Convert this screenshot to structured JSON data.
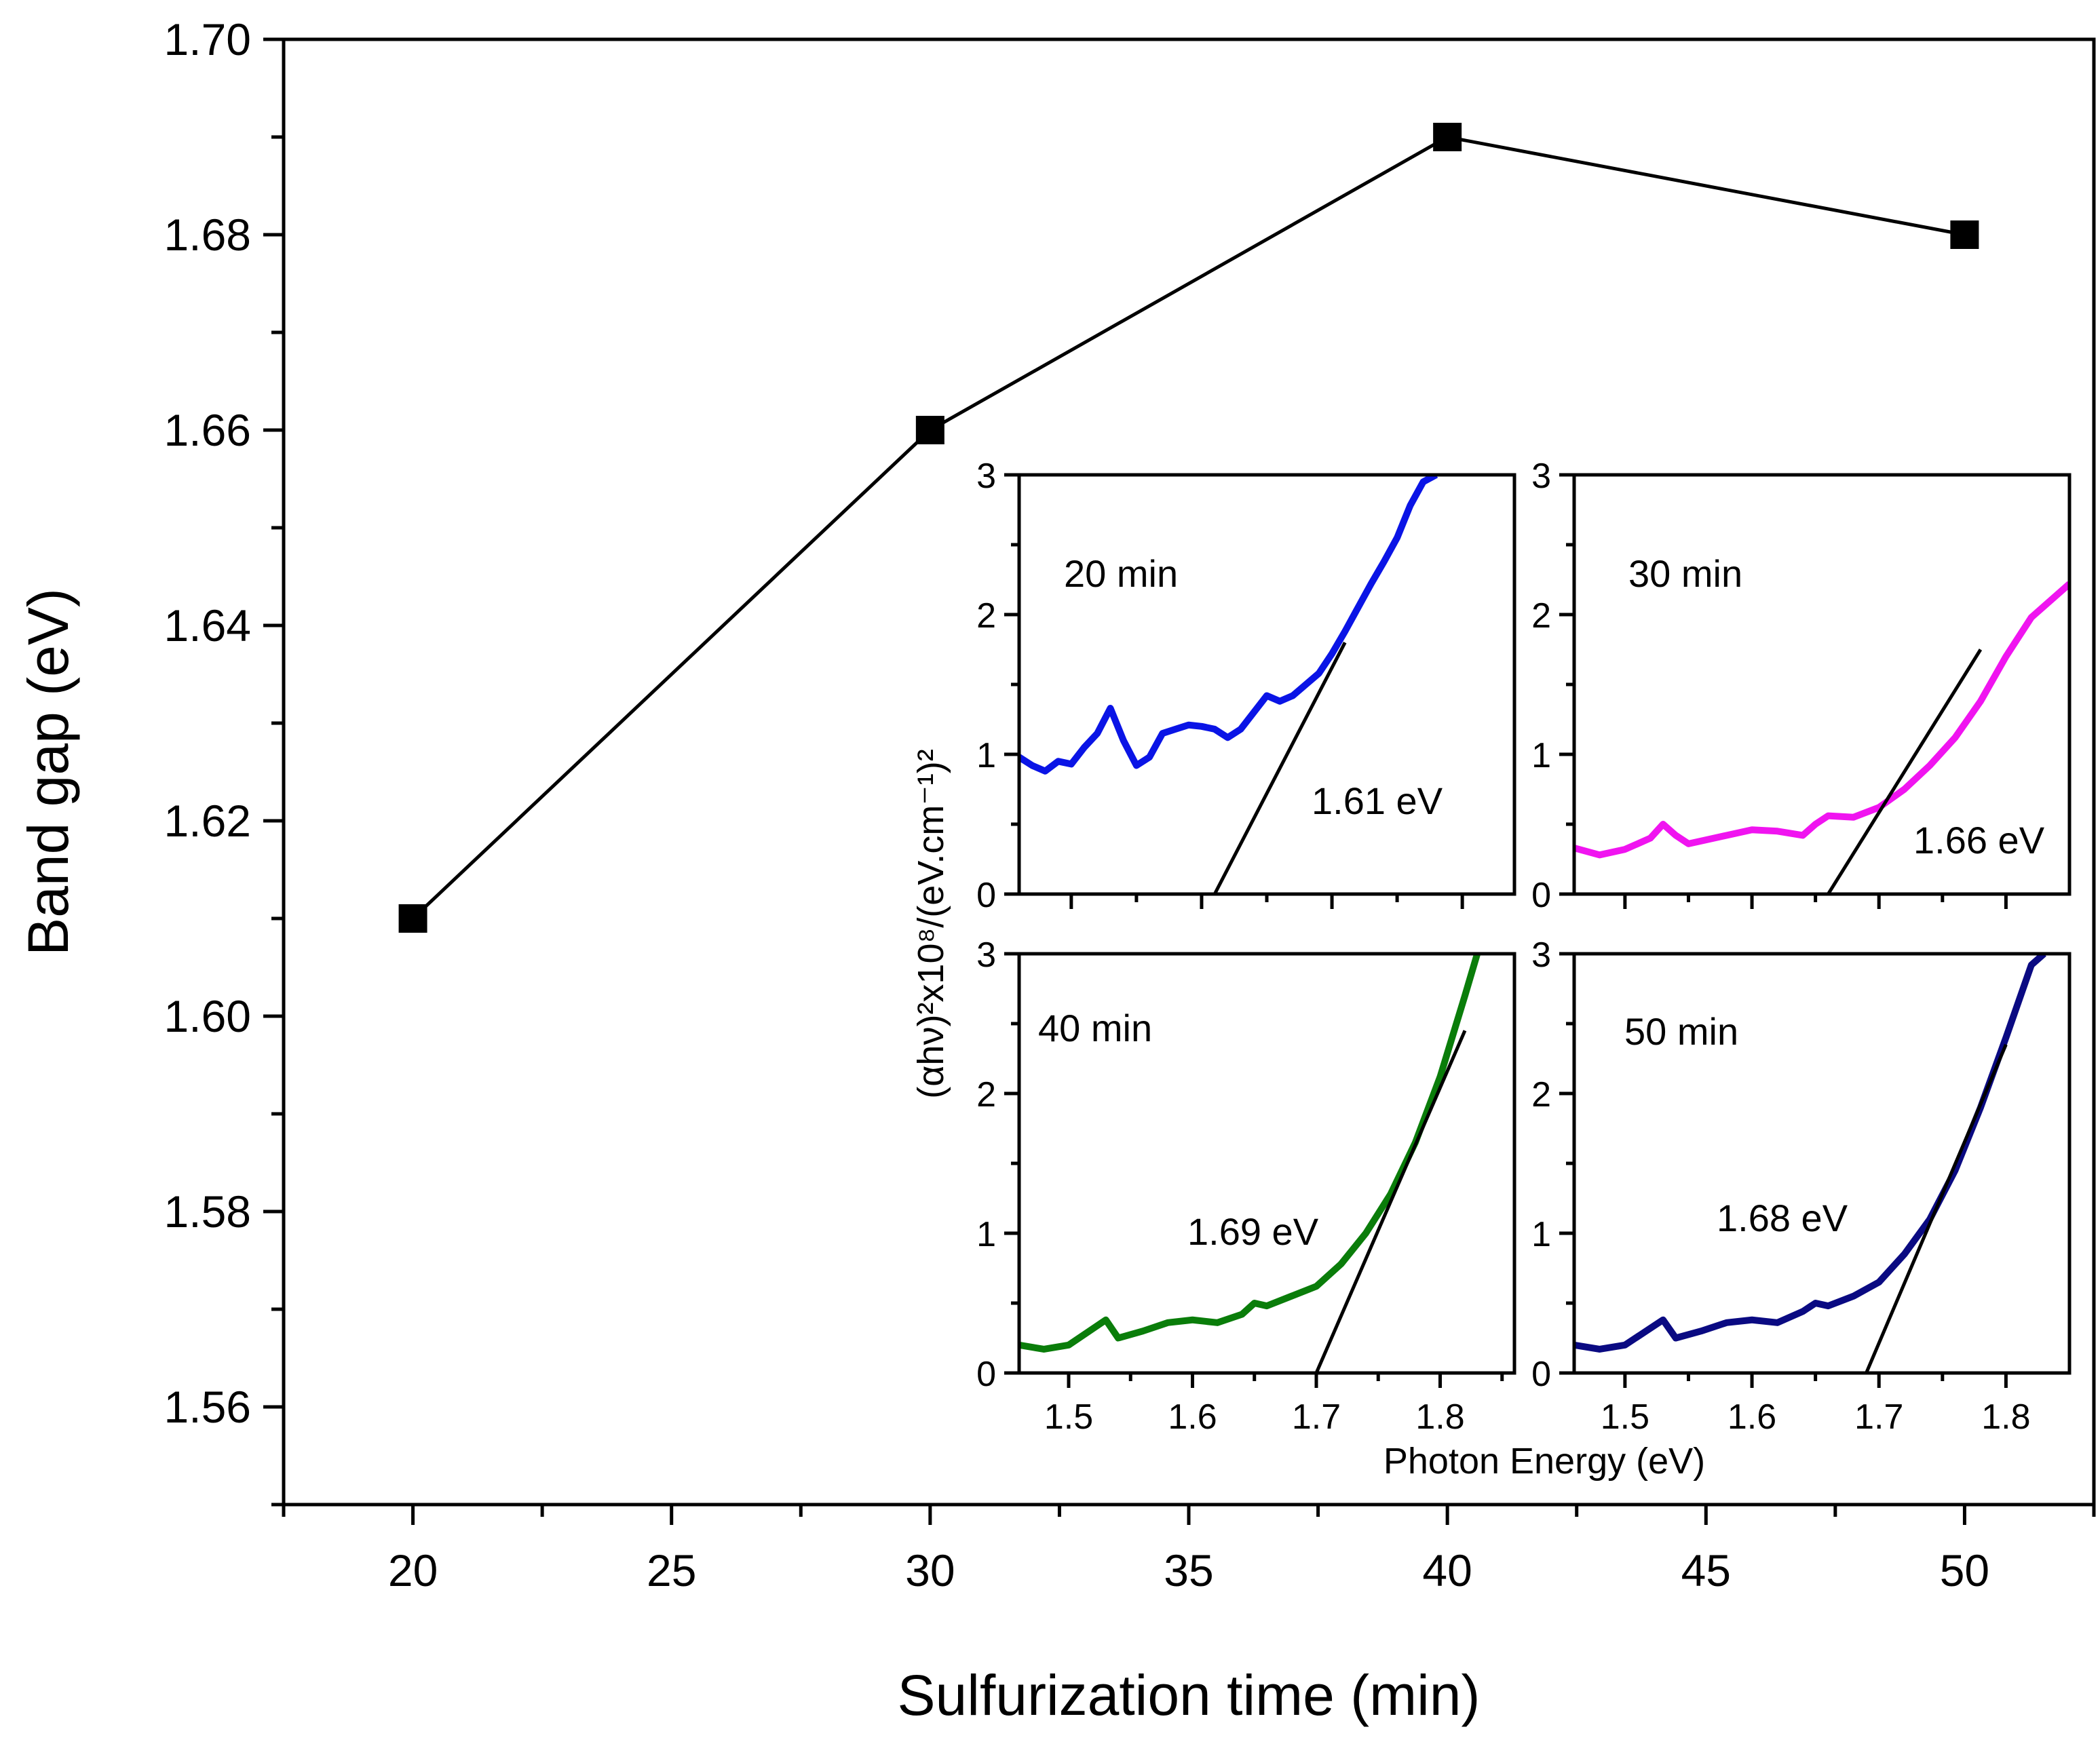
{
  "chart_data": [
    {
      "type": "line",
      "xlabel": "Sulfurization time (min)",
      "ylabel": "Band gap (eV)",
      "xlim": [
        17.5,
        52.5
      ],
      "ylim": [
        1.55,
        1.7
      ],
      "xticks": [
        20,
        25,
        30,
        35,
        40,
        45,
        50
      ],
      "xtick_labels": [
        "20",
        "25",
        "30",
        "35",
        "40",
        "45",
        "50"
      ],
      "yticks": [
        1.56,
        1.58,
        1.6,
        1.62,
        1.64,
        1.66,
        1.68,
        1.7
      ],
      "ytick_labels": [
        "1.56",
        "1.58",
        "1.60",
        "1.62",
        "1.64",
        "1.66",
        "1.68",
        "1.70"
      ],
      "series": [
        {
          "x": [
            20,
            30,
            40,
            50
          ],
          "y": [
            1.61,
            1.66,
            1.69,
            1.68
          ],
          "color": "#000000",
          "marker": "square"
        }
      ]
    },
    {
      "type": "line",
      "inset": true,
      "shared_ylabel": "(αhν)²x10⁸/(eV.cm⁻¹)²",
      "shared_xlabel": "Photon Energy (eV)",
      "xticks": [
        1.5,
        1.6,
        1.7,
        1.8
      ],
      "xtick_labels": [
        "1.5",
        "1.6",
        "1.7",
        "1.8"
      ],
      "yticks": [
        0,
        1,
        2,
        3
      ],
      "ytick_labels": [
        "0",
        "1",
        "2",
        "3"
      ],
      "panels": [
        {
          "label": "20 min",
          "annotation": "1.61 eV",
          "color": "#0a14e6",
          "xlim": [
            1.46,
            1.84
          ],
          "ylim": [
            0,
            3
          ],
          "curve_x": [
            1.46,
            1.47,
            1.48,
            1.49,
            1.5,
            1.51,
            1.52,
            1.53,
            1.54,
            1.55,
            1.56,
            1.57,
            1.58,
            1.59,
            1.6,
            1.61,
            1.62,
            1.63,
            1.64,
            1.65,
            1.66,
            1.67,
            1.68,
            1.69,
            1.7,
            1.71,
            1.72,
            1.73,
            1.74,
            1.75,
            1.76,
            1.77,
            1.78
          ],
          "curve_y": [
            0.98,
            0.92,
            0.88,
            0.95,
            0.93,
            1.05,
            1.15,
            1.33,
            1.1,
            0.92,
            0.98,
            1.15,
            1.18,
            1.21,
            1.2,
            1.18,
            1.12,
            1.18,
            1.3,
            1.42,
            1.38,
            1.42,
            1.5,
            1.58,
            1.72,
            1.88,
            2.05,
            2.22,
            2.38,
            2.55,
            2.78,
            2.95,
            3.0
          ],
          "fit_x": [
            1.61,
            1.71
          ],
          "fit_y": [
            0,
            1.8
          ]
        },
        {
          "label": "30 min",
          "annotation": "1.66 eV",
          "color": "#f014f0",
          "xlim": [
            1.46,
            1.85
          ],
          "ylim": [
            0,
            3
          ],
          "curve_x": [
            1.46,
            1.48,
            1.5,
            1.52,
            1.53,
            1.54,
            1.55,
            1.56,
            1.58,
            1.6,
            1.62,
            1.64,
            1.65,
            1.66,
            1.68,
            1.7,
            1.72,
            1.74,
            1.76,
            1.78,
            1.8,
            1.82,
            1.85
          ],
          "curve_y": [
            0.33,
            0.28,
            0.32,
            0.4,
            0.5,
            0.42,
            0.36,
            0.38,
            0.42,
            0.46,
            0.45,
            0.42,
            0.5,
            0.56,
            0.55,
            0.62,
            0.75,
            0.92,
            1.12,
            1.38,
            1.7,
            1.98,
            2.22
          ],
          "fit_x": [
            1.66,
            1.78
          ],
          "fit_y": [
            0,
            1.75
          ]
        },
        {
          "label": "40 min",
          "annotation": "1.69 eV",
          "color": "#0a7d0a",
          "xlim": [
            1.46,
            1.86
          ],
          "ylim": [
            0,
            3
          ],
          "curve_x": [
            1.46,
            1.48,
            1.5,
            1.52,
            1.53,
            1.54,
            1.56,
            1.58,
            1.6,
            1.62,
            1.64,
            1.65,
            1.66,
            1.68,
            1.7,
            1.72,
            1.74,
            1.76,
            1.78,
            1.8,
            1.82,
            1.83
          ],
          "curve_y": [
            0.2,
            0.17,
            0.2,
            0.32,
            0.38,
            0.25,
            0.3,
            0.36,
            0.38,
            0.36,
            0.42,
            0.5,
            0.48,
            0.55,
            0.62,
            0.78,
            1.0,
            1.28,
            1.65,
            2.12,
            2.7,
            3.0
          ],
          "fit_x": [
            1.7,
            1.82
          ],
          "fit_y": [
            0,
            2.45
          ]
        },
        {
          "label": "50 min",
          "annotation": "1.68 eV",
          "color": "#0a0a82",
          "xlim": [
            1.46,
            1.85
          ],
          "ylim": [
            0,
            3
          ],
          "curve_x": [
            1.46,
            1.48,
            1.5,
            1.52,
            1.53,
            1.54,
            1.56,
            1.58,
            1.6,
            1.62,
            1.64,
            1.65,
            1.66,
            1.68,
            1.7,
            1.72,
            1.74,
            1.76,
            1.78,
            1.8,
            1.82,
            1.83
          ],
          "curve_y": [
            0.2,
            0.17,
            0.2,
            0.32,
            0.38,
            0.25,
            0.3,
            0.36,
            0.38,
            0.36,
            0.44,
            0.5,
            0.48,
            0.55,
            0.65,
            0.85,
            1.1,
            1.45,
            1.9,
            2.4,
            2.92,
            3.0
          ],
          "fit_x": [
            1.69,
            1.8
          ],
          "fit_y": [
            0,
            2.35
          ]
        }
      ]
    }
  ]
}
